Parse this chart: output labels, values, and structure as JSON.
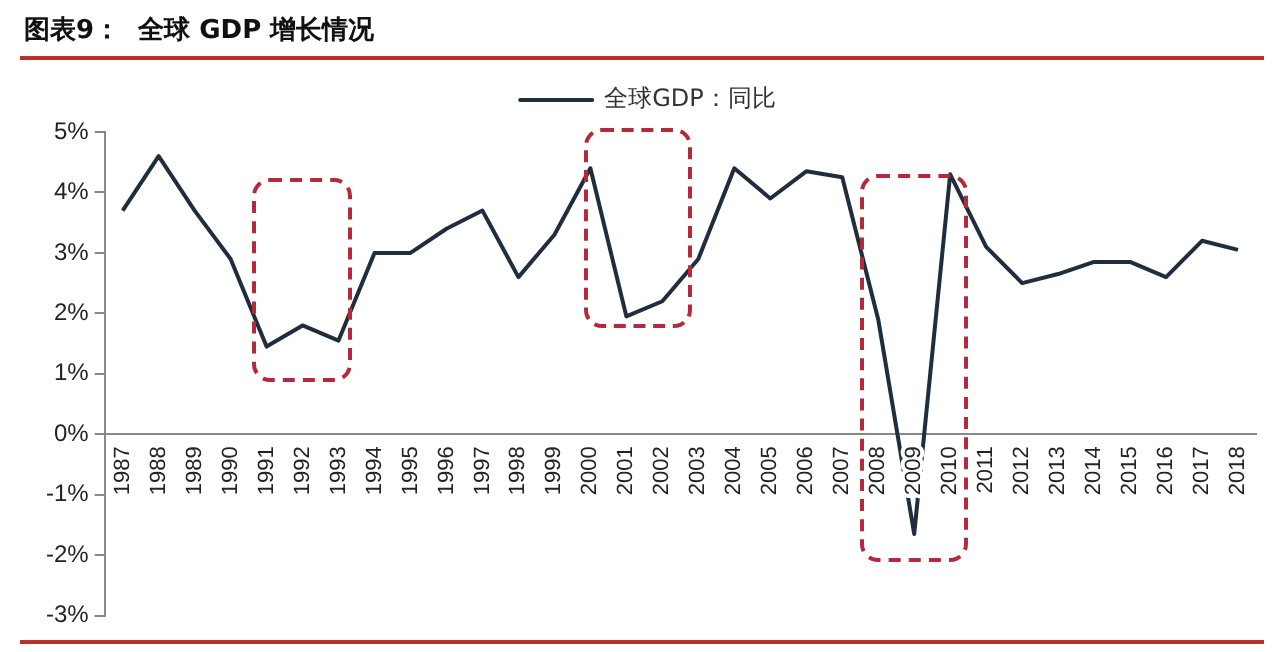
{
  "chart_data": {
    "type": "line",
    "title": "图表9：  全球 GDP 增长情况",
    "categories": [
      "1987",
      "1988",
      "1989",
      "1990",
      "1991",
      "1992",
      "1993",
      "1994",
      "1995",
      "1996",
      "1997",
      "1998",
      "1999",
      "2000",
      "2001",
      "2002",
      "2003",
      "2004",
      "2005",
      "2006",
      "2007",
      "2008",
      "2009",
      "2010",
      "2011",
      "2012",
      "2013",
      "2014",
      "2015",
      "2016",
      "2017",
      "2018"
    ],
    "series": [
      {
        "name": "全球GDP：同比",
        "color": "#1f2d3d",
        "values": [
          3.7,
          4.6,
          3.7,
          2.9,
          1.45,
          1.8,
          1.55,
          3.0,
          3.0,
          3.4,
          3.7,
          2.6,
          3.3,
          4.4,
          1.95,
          2.2,
          2.9,
          4.4,
          3.9,
          4.35,
          4.25,
          1.9,
          -1.65,
          4.3,
          3.1,
          2.5,
          2.65,
          2.85,
          2.85,
          2.6,
          3.2,
          3.05
        ]
      }
    ],
    "ylim": [
      -3,
      5
    ],
    "yticks": [
      {
        "value": -3,
        "label": "-3%"
      },
      {
        "value": -2,
        "label": "-2%"
      },
      {
        "value": -1,
        "label": "-1%"
      },
      {
        "value": 0,
        "label": "0%"
      },
      {
        "value": 1,
        "label": "1%"
      },
      {
        "value": 2,
        "label": "2%"
      },
      {
        "value": 3,
        "label": "3%"
      },
      {
        "value": 4,
        "label": "4%"
      },
      {
        "value": 5,
        "label": "5%"
      }
    ],
    "grid": false,
    "legend": "top",
    "marker": "none",
    "line_style": "solid"
  }
}
